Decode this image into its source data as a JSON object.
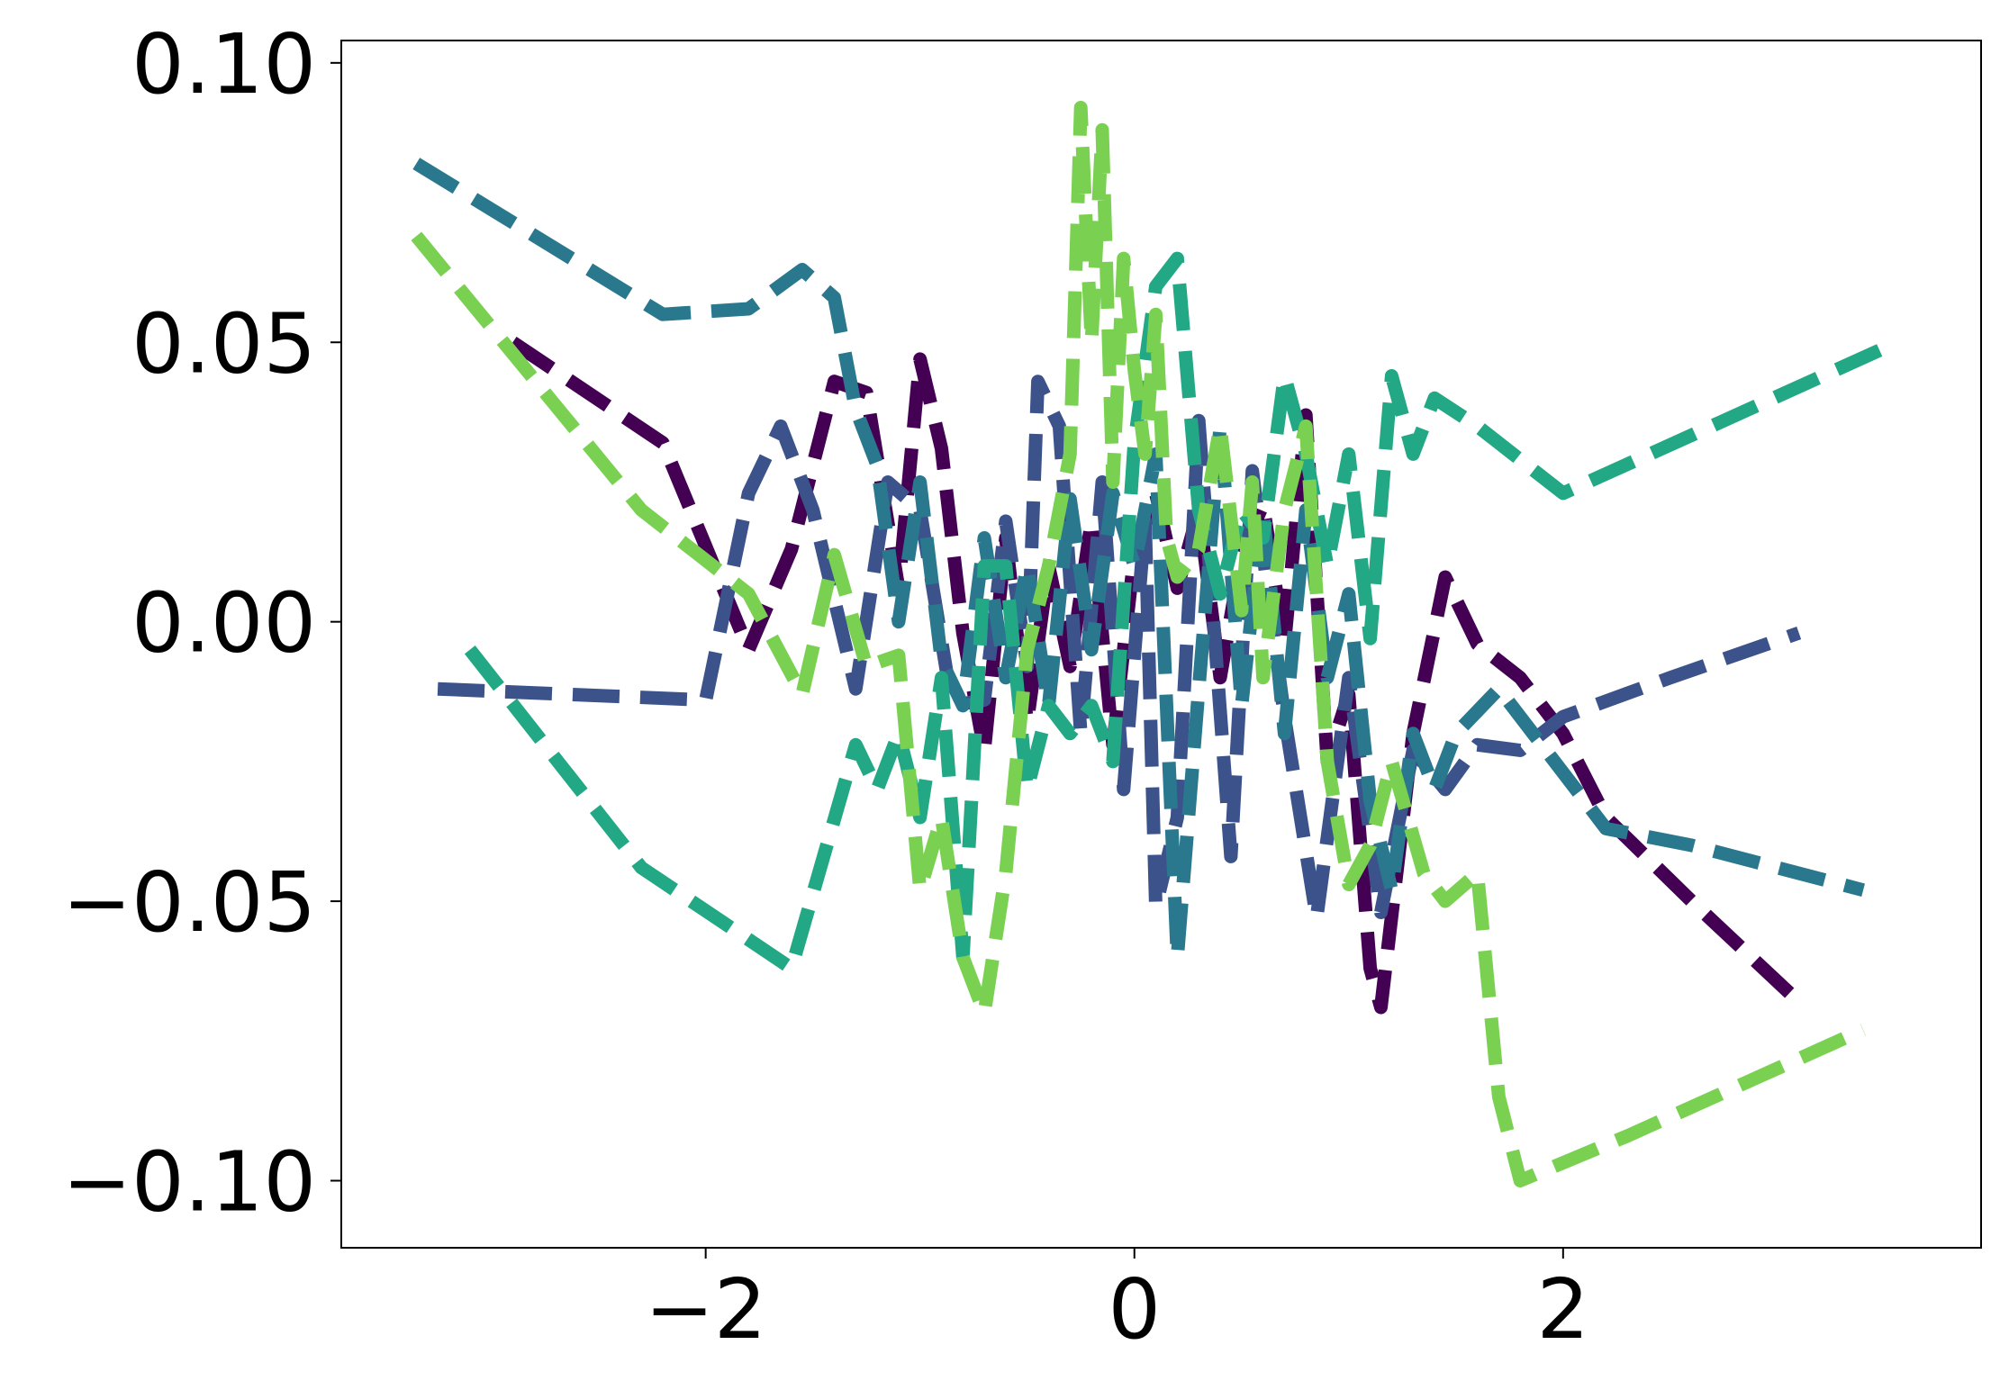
{
  "chart_data": {
    "type": "line",
    "title": "",
    "xlabel": "",
    "ylabel": "",
    "xlim": [
      -3.7,
      3.95
    ],
    "ylim": [
      -0.112,
      0.104
    ],
    "xticks": [
      -2,
      0,
      2
    ],
    "xtick_labels": [
      "−2",
      "0",
      "2"
    ],
    "yticks": [
      -0.1,
      -0.05,
      0.0,
      0.05,
      0.1
    ],
    "ytick_labels": [
      "−0.10",
      "−0.05",
      "0.00",
      "0.05",
      "0.10"
    ],
    "grid": false,
    "legend": "none",
    "series": [
      {
        "color": "#440154",
        "x": [
          -2.9,
          -2.2,
          -1.8,
          -1.6,
          -1.4,
          -1.25,
          -1.1,
          -1.0,
          -0.9,
          -0.8,
          -0.7,
          -0.6,
          -0.5,
          -0.4,
          -0.3,
          -0.2,
          -0.1,
          0.0,
          0.1,
          0.2,
          0.3,
          0.4,
          0.5,
          0.6,
          0.7,
          0.8,
          0.9,
          1.0,
          1.1,
          1.15,
          1.3,
          1.45,
          1.6,
          1.8,
          2.0,
          2.2,
          2.6,
          3.1
        ],
        "y": [
          0.05,
          0.032,
          -0.005,
          0.013,
          0.043,
          0.041,
          0.006,
          0.047,
          0.031,
          -0.002,
          -0.023,
          0.015,
          -0.018,
          0.01,
          -0.008,
          0.018,
          -0.022,
          0.012,
          0.023,
          0.006,
          0.02,
          -0.01,
          0.012,
          0.021,
          -0.004,
          0.037,
          -0.025,
          -0.013,
          -0.062,
          -0.069,
          -0.02,
          0.008,
          -0.004,
          -0.01,
          -0.02,
          -0.035,
          -0.05,
          -0.068
        ]
      },
      {
        "color": "#3b528b",
        "x": [
          -3.25,
          -2.0,
          -1.8,
          -1.65,
          -1.5,
          -1.3,
          -1.15,
          -1.0,
          -0.85,
          -0.7,
          -0.6,
          -0.5,
          -0.45,
          -0.35,
          -0.25,
          -0.15,
          -0.05,
          0.05,
          0.1,
          0.2,
          0.3,
          0.45,
          0.55,
          0.7,
          0.85,
          1.0,
          1.15,
          1.3,
          1.45,
          1.6,
          1.8,
          2.0,
          2.5,
          3.1
        ],
        "y": [
          -0.012,
          -0.014,
          0.023,
          0.035,
          0.02,
          -0.012,
          0.025,
          0.02,
          -0.015,
          -0.014,
          0.018,
          -0.008,
          0.043,
          0.035,
          -0.02,
          0.025,
          -0.03,
          0.018,
          -0.051,
          -0.035,
          0.036,
          -0.042,
          0.027,
          -0.017,
          -0.053,
          -0.01,
          -0.052,
          -0.023,
          -0.03,
          -0.022,
          -0.023,
          -0.017,
          -0.01,
          -0.002
        ]
      },
      {
        "color": "#2a788e",
        "x": [
          -3.35,
          -2.2,
          -1.8,
          -1.55,
          -1.4,
          -1.3,
          -1.2,
          -1.1,
          -1.0,
          -0.9,
          -0.8,
          -0.7,
          -0.6,
          -0.5,
          -0.4,
          -0.3,
          -0.2,
          -0.1,
          0.0,
          0.1,
          0.2,
          0.3,
          0.4,
          0.5,
          0.6,
          0.7,
          0.8,
          0.9,
          1.0,
          1.1,
          1.2,
          1.3,
          1.4,
          1.5,
          1.7,
          1.9,
          2.2,
          2.6,
          3.4
        ],
        "y": [
          0.082,
          0.055,
          0.056,
          0.063,
          0.058,
          0.038,
          0.028,
          0.0,
          0.025,
          -0.007,
          -0.015,
          0.015,
          -0.01,
          0.01,
          -0.015,
          0.022,
          -0.005,
          0.023,
          0.01,
          0.03,
          -0.06,
          -0.012,
          0.035,
          -0.015,
          0.02,
          -0.02,
          0.02,
          -0.01,
          0.005,
          -0.032,
          -0.048,
          -0.02,
          -0.03,
          -0.02,
          -0.012,
          -0.022,
          -0.037,
          -0.04,
          -0.048
        ]
      },
      {
        "color": "#22a884",
        "x": [
          -3.1,
          -2.3,
          -1.6,
          -1.3,
          -1.2,
          -1.1,
          -1.0,
          -0.9,
          -0.8,
          -0.7,
          -0.6,
          -0.5,
          -0.4,
          -0.3,
          -0.2,
          -0.1,
          0.0,
          0.1,
          0.2,
          0.3,
          0.4,
          0.5,
          0.6,
          0.7,
          0.8,
          0.9,
          1.0,
          1.1,
          1.2,
          1.3,
          1.4,
          1.6,
          2.0,
          3.5
        ],
        "y": [
          -0.005,
          -0.044,
          -0.062,
          -0.022,
          -0.03,
          -0.02,
          -0.035,
          -0.01,
          -0.06,
          0.01,
          0.01,
          -0.03,
          -0.015,
          -0.02,
          -0.015,
          -0.025,
          0.032,
          0.06,
          0.065,
          0.02,
          0.005,
          0.02,
          0.015,
          0.044,
          0.03,
          0.01,
          0.03,
          -0.003,
          0.044,
          0.03,
          0.04,
          0.035,
          0.023,
          0.049
        ]
      },
      {
        "color": "#7ad151",
        "x": [
          -3.35,
          -2.3,
          -1.8,
          -1.55,
          -1.4,
          -1.25,
          -1.1,
          -1.0,
          -0.9,
          -0.8,
          -0.7,
          -0.6,
          -0.5,
          -0.4,
          -0.3,
          -0.25,
          -0.2,
          -0.15,
          -0.1,
          -0.05,
          0.0,
          0.05,
          0.1,
          0.15,
          0.2,
          0.3,
          0.4,
          0.5,
          0.55,
          0.6,
          0.7,
          0.8,
          0.9,
          1.0,
          1.1,
          1.2,
          1.35,
          1.45,
          1.6,
          1.7,
          1.8,
          2.3,
          3.4
        ],
        "y": [
          0.069,
          0.02,
          0.005,
          -0.013,
          0.012,
          -0.008,
          -0.006,
          -0.048,
          -0.035,
          -0.06,
          -0.07,
          -0.045,
          -0.005,
          0.01,
          0.03,
          0.092,
          0.05,
          0.088,
          0.025,
          0.065,
          0.045,
          0.03,
          0.055,
          0.015,
          0.008,
          0.013,
          0.035,
          0.002,
          0.025,
          -0.01,
          0.02,
          0.035,
          -0.025,
          -0.047,
          -0.04,
          -0.025,
          -0.045,
          -0.05,
          -0.045,
          -0.085,
          -0.1,
          -0.092,
          -0.073
        ]
      }
    ]
  }
}
